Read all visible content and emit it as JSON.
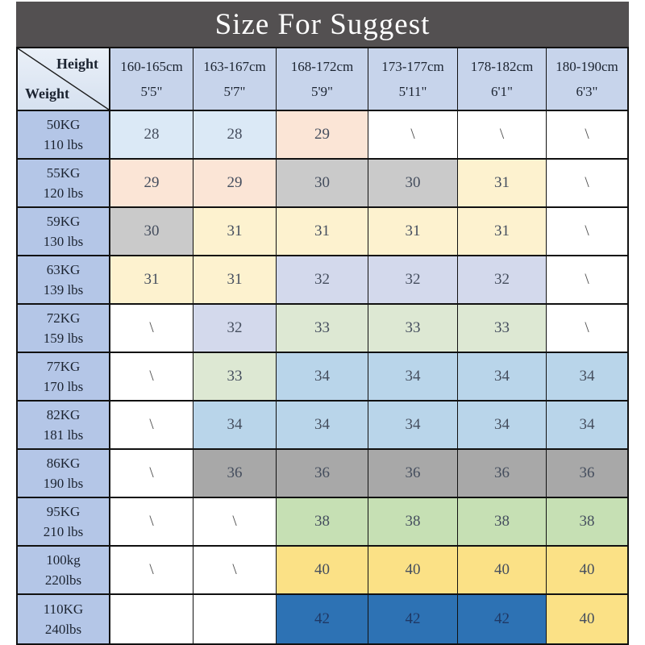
{
  "colors": {
    "title_bar": "#535051",
    "title_text": "#ffffff",
    "header_bg": "#c7d4eb",
    "weight_bg": "#b4c6e7",
    "corner_bg": "#dde7f3",
    "border": "#111111",
    "header_text": "#1b2330",
    "number_text": "#454e5e",
    "na_text": "#4a4a4a",
    "s42_text": "#1f3864"
  },
  "chart_data": {
    "type": "table",
    "title": "Size For Suggest",
    "corner": {
      "top_right": "Height",
      "bottom_left": "Weight"
    },
    "na_symbol": "\\",
    "palette": {
      "na": "#ffffff",
      "s28": "#dbe9f6",
      "s29": "#fbe5d6",
      "s30": "#cacaca",
      "s31": "#fdf2cf",
      "s32": "#d3d9ec",
      "s33": "#dde8d3",
      "s34": "#b9d5ea",
      "s36": "#a8a8a8",
      "s38": "#c6e0b4",
      "s40": "#fbe186",
      "s42": "#2d72b4"
    },
    "columns": [
      {
        "cm": "160-165cm",
        "ft": "5'5\""
      },
      {
        "cm": "163-167cm",
        "ft": "5'7\""
      },
      {
        "cm": "168-172cm",
        "ft": "5'9\""
      },
      {
        "cm": "173-177cm",
        "ft": "5'11\""
      },
      {
        "cm": "178-182cm",
        "ft": "6'1\""
      },
      {
        "cm": "180-190cm",
        "ft": "6'3\""
      }
    ],
    "rows": [
      {
        "kg": "50KG",
        "lbs": "110 lbs",
        "cells": [
          {
            "text": "28",
            "bg": "s28"
          },
          {
            "text": "28",
            "bg": "s28"
          },
          {
            "text": "29",
            "bg": "s29"
          },
          {
            "text": "\\",
            "bg": "na"
          },
          {
            "text": "\\",
            "bg": "na"
          },
          {
            "text": "\\",
            "bg": "na"
          }
        ]
      },
      {
        "kg": "55KG",
        "lbs": "120 lbs",
        "cells": [
          {
            "text": "29",
            "bg": "s29"
          },
          {
            "text": "29",
            "bg": "s29"
          },
          {
            "text": "30",
            "bg": "s30"
          },
          {
            "text": "30",
            "bg": "s30"
          },
          {
            "text": "31",
            "bg": "s31"
          },
          {
            "text": "\\",
            "bg": "na"
          }
        ]
      },
      {
        "kg": "59KG",
        "lbs": "130 lbs",
        "cells": [
          {
            "text": "30",
            "bg": "s30"
          },
          {
            "text": "31",
            "bg": "s31"
          },
          {
            "text": "31",
            "bg": "s31"
          },
          {
            "text": "31",
            "bg": "s31"
          },
          {
            "text": "31",
            "bg": "s31"
          },
          {
            "text": "\\",
            "bg": "na"
          }
        ]
      },
      {
        "kg": "63KG",
        "lbs": "139 lbs",
        "cells": [
          {
            "text": "31",
            "bg": "s31"
          },
          {
            "text": "31",
            "bg": "s31"
          },
          {
            "text": "32",
            "bg": "s32"
          },
          {
            "text": "32",
            "bg": "s32"
          },
          {
            "text": "32",
            "bg": "s32"
          },
          {
            "text": "\\",
            "bg": "na"
          }
        ]
      },
      {
        "kg": "72KG",
        "lbs": "159 lbs",
        "cells": [
          {
            "text": "\\",
            "bg": "na"
          },
          {
            "text": "32",
            "bg": "s32"
          },
          {
            "text": "33",
            "bg": "s33"
          },
          {
            "text": "33",
            "bg": "s33"
          },
          {
            "text": "33",
            "bg": "s33"
          },
          {
            "text": "\\",
            "bg": "na"
          }
        ]
      },
      {
        "kg": "77KG",
        "lbs": "170 lbs",
        "cells": [
          {
            "text": "\\",
            "bg": "na"
          },
          {
            "text": "33",
            "bg": "s33"
          },
          {
            "text": "34",
            "bg": "s34"
          },
          {
            "text": "34",
            "bg": "s34"
          },
          {
            "text": "34",
            "bg": "s34"
          },
          {
            "text": "34",
            "bg": "s34"
          }
        ]
      },
      {
        "kg": "82KG",
        "lbs": "181 lbs",
        "cells": [
          {
            "text": "\\",
            "bg": "na"
          },
          {
            "text": "34",
            "bg": "s34"
          },
          {
            "text": "34",
            "bg": "s34"
          },
          {
            "text": "34",
            "bg": "s34"
          },
          {
            "text": "34",
            "bg": "s34"
          },
          {
            "text": "34",
            "bg": "s34"
          }
        ]
      },
      {
        "kg": "86KG",
        "lbs": "190 lbs",
        "cells": [
          {
            "text": "\\",
            "bg": "na"
          },
          {
            "text": "36",
            "bg": "s36"
          },
          {
            "text": "36",
            "bg": "s36"
          },
          {
            "text": "36",
            "bg": "s36"
          },
          {
            "text": "36",
            "bg": "s36"
          },
          {
            "text": "36",
            "bg": "s36"
          }
        ]
      },
      {
        "kg": "95KG",
        "lbs": "210 lbs",
        "cells": [
          {
            "text": "\\",
            "bg": "na"
          },
          {
            "text": "\\",
            "bg": "na"
          },
          {
            "text": "38",
            "bg": "s38"
          },
          {
            "text": "38",
            "bg": "s38"
          },
          {
            "text": "38",
            "bg": "s38"
          },
          {
            "text": "38",
            "bg": "s38"
          }
        ]
      },
      {
        "kg": "100kg",
        "lbs": "220lbs",
        "cells": [
          {
            "text": "\\",
            "bg": "na"
          },
          {
            "text": "\\",
            "bg": "na"
          },
          {
            "text": "40",
            "bg": "s40"
          },
          {
            "text": "40",
            "bg": "s40"
          },
          {
            "text": "40",
            "bg": "s40"
          },
          {
            "text": "40",
            "bg": "s40"
          }
        ]
      },
      {
        "kg": "110KG",
        "lbs": "240lbs",
        "cells": [
          {
            "text": "",
            "bg": "na"
          },
          {
            "text": "",
            "bg": "na"
          },
          {
            "text": "42",
            "bg": "s42"
          },
          {
            "text": "42",
            "bg": "s42"
          },
          {
            "text": "42",
            "bg": "s42"
          },
          {
            "text": "40",
            "bg": "s40"
          }
        ]
      }
    ]
  }
}
